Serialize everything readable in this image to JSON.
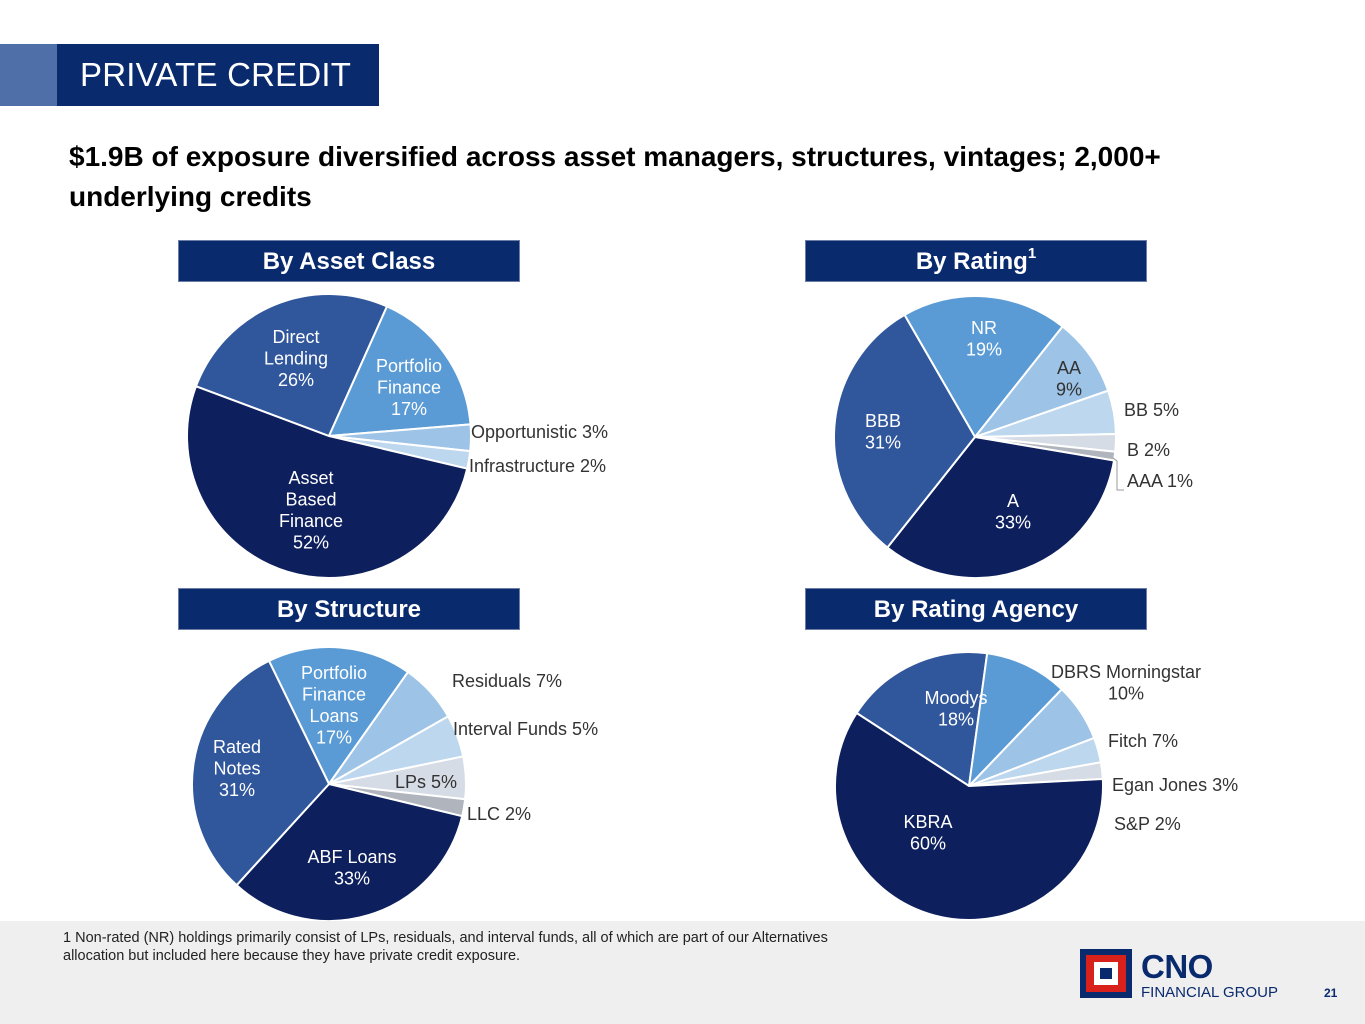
{
  "title": "PRIVATE CREDIT",
  "headline": "$1.9B of exposure diversified across asset managers, structures, vintages; 2,000+ underlying credits",
  "colors": {
    "navy": "#0a2a6e",
    "dark_navy": "#0d1f5c",
    "medium_blue": "#30569b",
    "sky_blue": "#5b9bd5",
    "light_blue": "#9dc3e6",
    "pale_blue": "#bdd7ee",
    "very_pale_blue": "#d6dce5",
    "logo_red": "#d9211c"
  },
  "chart_data": [
    {
      "type": "pie",
      "title": "By Asset Class",
      "categories": [
        "Direct Lending",
        "Portfolio Finance",
        "Opportunistic",
        "Infrastructure",
        "Asset Based Finance"
      ],
      "values": [
        26,
        17,
        3,
        2,
        52
      ],
      "labels": [
        [
          "Direct",
          "Lending",
          "26%"
        ],
        [
          "Portfolio",
          "Finance",
          "17%"
        ],
        [
          "Opportunistic 3%"
        ],
        [
          "Infrastructure 2%"
        ],
        [
          "Asset",
          "Based",
          "Finance",
          "52%"
        ]
      ]
    },
    {
      "type": "pie",
      "title": "By Rating",
      "title_superscript": "1",
      "categories": [
        "NR",
        "AA",
        "BB",
        "B",
        "AAA",
        "A",
        "BBB"
      ],
      "values": [
        19,
        9,
        5,
        2,
        1,
        33,
        31
      ],
      "labels": [
        [
          "NR",
          "19%"
        ],
        [
          "AA",
          "9%"
        ],
        [
          "BB 5%"
        ],
        [
          "B 2%"
        ],
        [
          "AAA 1%"
        ],
        [
          "A",
          "33%"
        ],
        [
          "BBB",
          "31%"
        ]
      ]
    },
    {
      "type": "pie",
      "title": "By Structure",
      "categories": [
        "Portfolio Finance Loans",
        "Residuals",
        "Interval Funds",
        "LPs",
        "LLC",
        "ABF Loans",
        "Rated Notes"
      ],
      "values": [
        17,
        7,
        5,
        5,
        2,
        33,
        31
      ],
      "labels": [
        [
          "Portfolio",
          "Finance",
          "Loans",
          "17%"
        ],
        [
          "Residuals 7%"
        ],
        [
          "Interval Funds 5%"
        ],
        [
          "LPs 5%"
        ],
        [
          "LLC 2%"
        ],
        [
          "ABF Loans",
          "33%"
        ],
        [
          "Rated",
          "Notes",
          "31%"
        ]
      ]
    },
    {
      "type": "pie",
      "title": "By Rating Agency",
      "categories": [
        "Moodys",
        "DBRS Morningstar",
        "Fitch",
        "Egan Jones",
        "S&P",
        "KBRA"
      ],
      "values": [
        18,
        10,
        7,
        3,
        2,
        60
      ],
      "labels": [
        [
          "Moodys",
          "18%"
        ],
        [
          "DBRS Morningstar",
          "10%"
        ],
        [
          "Fitch 7%"
        ],
        [
          "Egan Jones 3%"
        ],
        [
          "S&P 2%"
        ],
        [
          "KBRA",
          "60%"
        ]
      ]
    }
  ],
  "footnote": "1  Non-rated (NR) holdings primarily consist of LPs, residuals, and interval funds, all of which are part of our Alternatives allocation but included here because they have private credit exposure.",
  "logo": {
    "name": "CNO",
    "subtitle": "FINANCIAL GROUP"
  },
  "page_number": "21"
}
